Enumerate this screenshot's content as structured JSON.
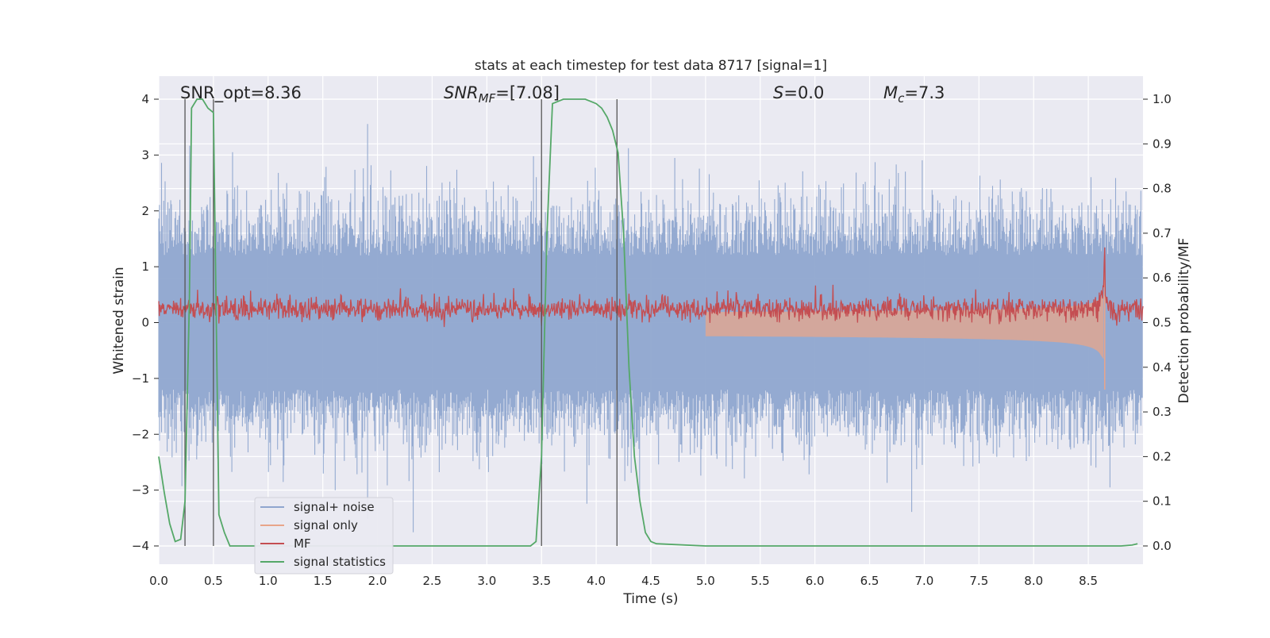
{
  "chart_data": {
    "type": "line",
    "title": "stats at each timestep for test data 8717 [signal=1]",
    "xlabel": "Time (s)",
    "ylabel_left": "Whitened strain",
    "ylabel_right": "Detection probability/MF",
    "xlim": [
      0,
      9.0
    ],
    "ylim_left": [
      -4.4,
      4.4
    ],
    "ylim_right": [
      -0.05,
      1.05
    ],
    "xticks": [
      "0.0",
      "0.5",
      "1.0",
      "1.5",
      "2.0",
      "2.5",
      "3.0",
      "3.5",
      "4.0",
      "4.5",
      "5.0",
      "5.5",
      "6.0",
      "6.5",
      "7.0",
      "7.5",
      "8.0",
      "8.5"
    ],
    "yticks_left": [
      "−4",
      "−3",
      "−2",
      "−1",
      "0",
      "1",
      "2",
      "3",
      "4"
    ],
    "yticks_right": [
      "0.0",
      "0.1",
      "0.2",
      "0.3",
      "0.4",
      "0.5",
      "0.6",
      "0.7",
      "0.8",
      "0.9",
      "1.0"
    ],
    "grid": true,
    "legend_placement": "lower-left",
    "annotations": {
      "snr_opt": "SNR_opt=8.36",
      "snr_mf_main": "SNR",
      "snr_mf_sub": "MF",
      "snr_mf_rest": "=[7.08]",
      "s_main": "S",
      "s_rest": "=0.0",
      "mc_main": "M",
      "mc_sub": "c",
      "mc_rest": "=7.3"
    },
    "vertical_lines_x": [
      0.24,
      0.5,
      3.5,
      4.19
    ],
    "series": [
      {
        "name": "signal+ noise",
        "axis": "left",
        "color": "#8fa6cf",
        "description_values": {
          "envelope_upper_typical": 2.0,
          "envelope_lower_typical": -2.0,
          "max": 4.0,
          "min": -4.0
        }
      },
      {
        "name": "signal only",
        "axis": "left",
        "color": "#e8a58a",
        "chirp_end_time": 8.65,
        "chirp_peak_amplitude": [
          -1.2,
          0.9
        ]
      },
      {
        "name": "MF",
        "axis": "right",
        "color": "#c44e52",
        "baseline": 0.53,
        "peak": {
          "x": 8.65,
          "y": 0.62
        }
      },
      {
        "name": "signal statistics",
        "axis": "right",
        "color": "#55a868",
        "x": [
          0.0,
          0.05,
          0.1,
          0.15,
          0.2,
          0.24,
          0.28,
          0.3,
          0.35,
          0.4,
          0.45,
          0.5,
          0.55,
          0.6,
          0.65,
          1.0,
          1.5,
          2.0,
          2.5,
          3.0,
          3.4,
          3.45,
          3.5,
          3.55,
          3.6,
          3.7,
          3.8,
          3.9,
          4.0,
          4.05,
          4.1,
          4.15,
          4.2,
          4.25,
          4.3,
          4.35,
          4.4,
          4.45,
          4.5,
          4.55,
          5.0,
          6.0,
          7.0,
          8.0,
          8.8,
          8.9,
          8.95
        ],
        "y": [
          0.2,
          0.12,
          0.05,
          0.01,
          0.015,
          0.1,
          0.55,
          0.98,
          1.0,
          1.0,
          0.98,
          0.97,
          0.07,
          0.03,
          0.0,
          0.0,
          0.0,
          0.0,
          0.0,
          0.0,
          0.0,
          0.01,
          0.2,
          0.7,
          0.99,
          1.0,
          1.0,
          1.0,
          0.99,
          0.98,
          0.96,
          0.93,
          0.88,
          0.7,
          0.4,
          0.2,
          0.1,
          0.03,
          0.01,
          0.005,
          0.0,
          0.0,
          0.0,
          0.0,
          0.0,
          0.002,
          0.005
        ]
      }
    ]
  }
}
